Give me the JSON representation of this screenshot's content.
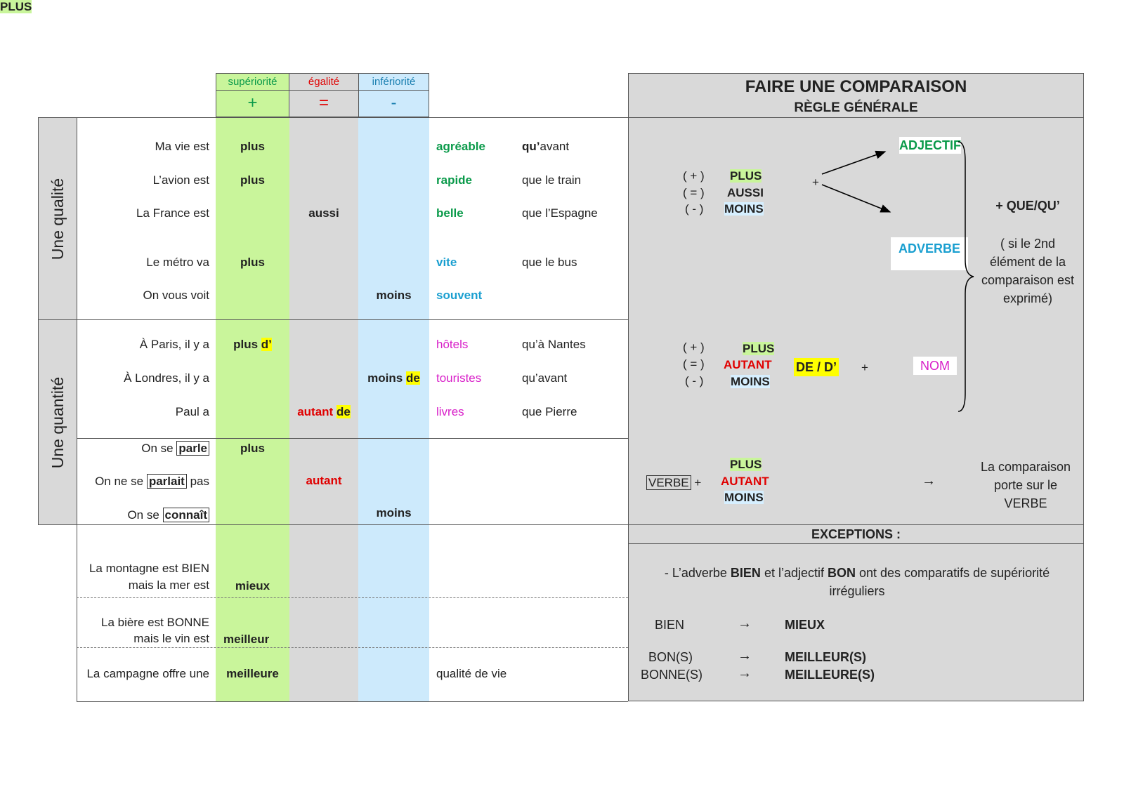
{
  "colors": {
    "superiorite": "#c9f59b",
    "egalite": "#d9d9d9",
    "inferiorite": "#cdeafc",
    "panel": "#d9d9d9",
    "green": "#0a9a4a",
    "red": "#e00000",
    "blue": "#1a9fd0",
    "magenta": "#d81ec8",
    "highlight": "#ffff00"
  },
  "header": {
    "sup_label": "supériorité",
    "eg_label": "égalité",
    "inf_label": "infériorité",
    "sup_sign": "+",
    "eg_sign": "=",
    "inf_sign": "-"
  },
  "sections": {
    "qualite": "Une qualité",
    "quantite": "Une quantité"
  },
  "qualite_rows": [
    {
      "subject": "Ma vie est",
      "sup": "plus",
      "eg": "",
      "inf": "",
      "word": "agréable",
      "compl_bold": "qu’",
      "compl": "avant"
    },
    {
      "subject": "L’avion est",
      "sup": "plus",
      "eg": "",
      "inf": "",
      "word": "rapide",
      "compl_bold": "",
      "compl": "que le train"
    },
    {
      "subject": "La France est",
      "sup": "",
      "eg": "aussi",
      "inf": "",
      "word": "belle",
      "compl_bold": "",
      "compl": "que l’Espagne"
    },
    {
      "subject": "Le métro va",
      "sup": "plus",
      "eg": "",
      "inf": "",
      "word": "vite",
      "compl_bold": "",
      "compl": "que le bus"
    },
    {
      "subject": "On vous voit",
      "sup": "",
      "eg": "",
      "inf": "moins",
      "word": "souvent",
      "compl_bold": "",
      "compl": ""
    }
  ],
  "quantite_rows": [
    {
      "subject": "À Paris, il y a",
      "marker": "plus",
      "de": "d’",
      "word": "hôtels",
      "compl": "qu’à Nantes"
    },
    {
      "subject": "À Londres, il y a",
      "marker": "moins",
      "de": "de",
      "word": "touristes",
      "compl": "qu’avant"
    },
    {
      "subject": "Paul a",
      "marker": "autant",
      "de": "de",
      "word": "livres",
      "compl": "que Pierre"
    }
  ],
  "verbe_rows": [
    {
      "pre": "On se",
      "verb": "parle",
      "post": "",
      "marker": "plus"
    },
    {
      "pre": "On ne se",
      "verb": "parlait",
      "post": "pas",
      "marker": "autant"
    },
    {
      "pre": "On se",
      "verb": "connaît",
      "post": "",
      "marker": "moins"
    }
  ],
  "exception_rows": [
    {
      "line1": "La montagne est BIEN",
      "line2": "mais la mer est",
      "value": "mieux",
      "compl": ""
    },
    {
      "line1": "La bière est BONNE",
      "line2": "mais le vin  est",
      "value": "meilleur",
      "compl": ""
    },
    {
      "line1": "",
      "line2": "La campagne offre une",
      "value": "meilleure",
      "compl": "qualité de vie"
    }
  ],
  "panel": {
    "title": "FAIRE UNE COMPARAISON",
    "subtitle": "RÈGLE GÉNÉRALE",
    "signs": [
      "( + )",
      "( = )",
      "( - )"
    ],
    "qualite_words": [
      "PLUS",
      "AUSSI",
      "MOINS"
    ],
    "plus_sign": "+",
    "adjectif": "ADJECTIF",
    "adverbe": "ADVERBE",
    "que": "+ QUE/QU’",
    "note": [
      "( si le 2nd",
      "élément de la",
      "comparaison est",
      "exprimé)"
    ],
    "quantite_words": [
      "PLUS",
      "AUTANT",
      "MOINS"
    ],
    "de": "DE / D’",
    "nom": "NOM",
    "verbe": "VERBE",
    "verbe_words": [
      "PLUS",
      "AUTANT",
      "MOINS"
    ],
    "arrow": "→",
    "verbe_note": [
      "La comparaison",
      "porte sur le",
      "VERBE"
    ],
    "exceptions_title": "EXCEPTIONS :",
    "exc_text_1": "- L’adverbe ",
    "exc_bien": "BIEN",
    "exc_text_2": " et l’adjectif ",
    "exc_bon": "BON",
    "exc_text_3": " ont des comparatifs de supériorité",
    "exc_text_4": "irréguliers",
    "irregular": [
      {
        "from": "BIEN",
        "to": "MIEUX"
      },
      {
        "from": "BON(S)",
        "to": "MEILLEUR(S)"
      },
      {
        "from": "BONNE(S)",
        "to": "MEILLEURE(S)"
      }
    ]
  }
}
